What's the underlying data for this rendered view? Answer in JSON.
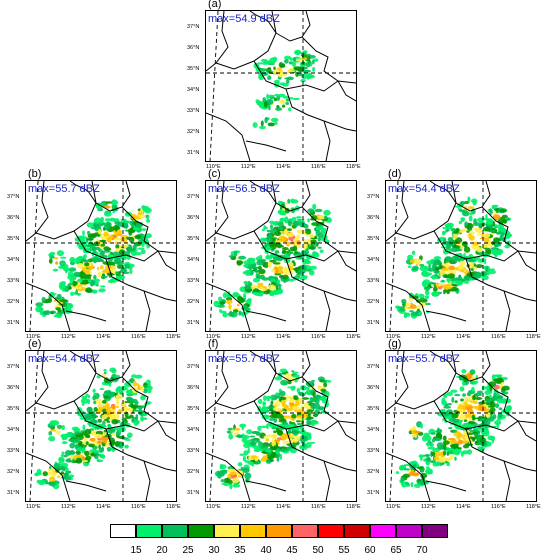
{
  "panels": [
    {
      "id": "a",
      "label": "(a)",
      "max_text": "max=54.9 dBZ"
    },
    {
      "id": "b",
      "label": "(b)",
      "max_text": "max=55.7 dBZ"
    },
    {
      "id": "c",
      "label": "(c)",
      "max_text": "max=56.5 dBZ"
    },
    {
      "id": "d",
      "label": "(d)",
      "max_text": "max=54.4 dBZ"
    },
    {
      "id": "e",
      "label": "(e)",
      "max_text": "max=54.4 dBZ"
    },
    {
      "id": "f",
      "label": "(f)",
      "max_text": "max=55.7 dBZ"
    },
    {
      "id": "g",
      "label": "(g)",
      "max_text": "max=55.7 dBZ"
    }
  ],
  "lat_ticks": [
    "37°N",
    "36°N",
    "35°N",
    "34°N",
    "33°N",
    "32°N",
    "31°N"
  ],
  "lon_ticks": [
    "110°E",
    "112°E",
    "114°E",
    "116°E",
    "118°E"
  ],
  "colorbar": {
    "labels": [
      "15",
      "20",
      "25",
      "30",
      "35",
      "40",
      "45",
      "50",
      "55",
      "60",
      "65",
      "70"
    ],
    "colors": [
      "#ffffff",
      "#00f06a",
      "#00c05a",
      "#009a00",
      "#fff050",
      "#ffc800",
      "#ff9a00",
      "#ff6464",
      "#ff0000",
      "#d00000",
      "#ff00ff",
      "#c000c8",
      "#800080"
    ]
  },
  "reflectivity_colors": [
    "#00f06a",
    "#00c05a",
    "#009a00",
    "#fff050",
    "#ffc800",
    "#ff9a00",
    "#ff6464"
  ]
}
